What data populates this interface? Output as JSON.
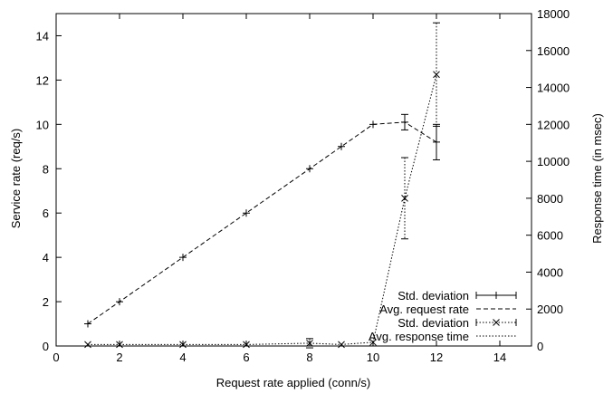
{
  "chart_data": {
    "type": "line",
    "title": "",
    "xlabel": "Request rate applied (conn/s)",
    "ylabel": "Service rate (req/s)",
    "y2label": "Response time (in msec)",
    "xlim": [
      0,
      15
    ],
    "ylim": [
      0,
      15
    ],
    "y2lim": [
      0,
      18000
    ],
    "xticks": [
      0,
      2,
      4,
      6,
      8,
      10,
      12,
      14
    ],
    "yticks": [
      0,
      2,
      4,
      6,
      8,
      10,
      12,
      14
    ],
    "y2ticks": [
      0,
      2000,
      4000,
      6000,
      8000,
      10000,
      12000,
      14000,
      16000,
      18000
    ],
    "grid": false,
    "legend_position": "bottom-right",
    "legend": [
      {
        "label": "Std. deviation",
        "style": "errorbar-plus"
      },
      {
        "label": "Avg. request rate",
        "style": "dashed"
      },
      {
        "label": "Std. deviation",
        "style": "errorbar-cross-dotted"
      },
      {
        "label": "Avg. response time",
        "style": "dotted"
      }
    ],
    "series": [
      {
        "name": "Avg. request rate",
        "axis": "left",
        "marker": "plus",
        "line": "dashed",
        "x": [
          1,
          2,
          4,
          6,
          8,
          9,
          10,
          11,
          12
        ],
        "y": [
          1,
          2,
          4,
          6,
          8,
          9,
          10,
          10.1,
          9.2
        ],
        "err": [
          0,
          0,
          0,
          0,
          0,
          0,
          0,
          0.35,
          0.8
        ]
      },
      {
        "name": "Avg. response time",
        "axis": "right",
        "marker": "cross",
        "line": "dotted",
        "x": [
          1,
          2,
          4,
          6,
          8,
          9,
          10,
          11,
          12
        ],
        "y": [
          80,
          80,
          80,
          80,
          150,
          80,
          200,
          8000,
          14700
        ],
        "err": [
          0,
          0,
          0,
          0,
          250,
          0,
          0,
          2200,
          2800
        ]
      }
    ]
  }
}
